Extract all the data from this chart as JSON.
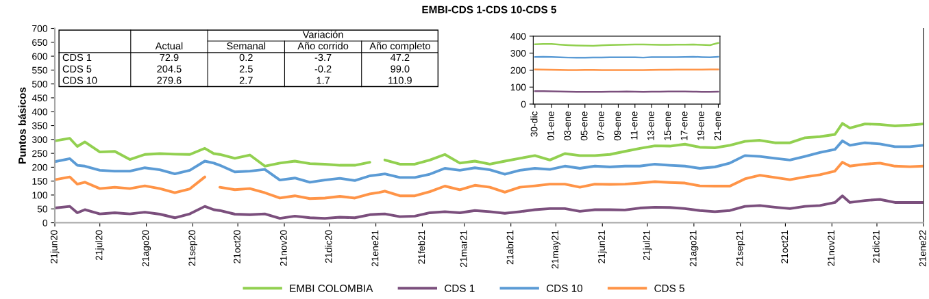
{
  "chart_data": [
    {
      "type": "line",
      "title": "EMBI-CDS 1-CDS 10-CDS 5",
      "ylabel": "Puntos básicos",
      "legend": "bottom",
      "x": [
        "2020-06-21",
        "2020-07-01",
        "2020-07-06",
        "2020-07-11",
        "2020-07-21",
        "2020-07-31",
        "2020-08-10",
        "2020-08-20",
        "2020-08-30",
        "2020-09-09",
        "2020-09-19",
        "2020-09-29",
        "2020-10-05",
        "2020-10-09",
        "2020-10-19",
        "2020-10-29",
        "2020-11-08",
        "2020-11-18",
        "2020-11-28",
        "2020-12-08",
        "2020-12-18",
        "2020-12-28",
        "2021-01-07",
        "2021-01-17",
        "2021-01-23",
        "2021-01-27",
        "2021-02-06",
        "2021-02-16",
        "2021-02-26",
        "2021-03-08",
        "2021-03-18",
        "2021-03-28",
        "2021-04-07",
        "2021-04-17",
        "2021-04-27",
        "2021-05-07",
        "2021-05-17",
        "2021-05-27",
        "2021-06-06",
        "2021-06-16",
        "2021-06-26",
        "2021-07-06",
        "2021-07-16",
        "2021-07-26",
        "2021-08-05",
        "2021-08-15",
        "2021-08-25",
        "2021-09-04",
        "2021-09-14",
        "2021-09-24",
        "2021-10-04",
        "2021-10-14",
        "2021-10-24",
        "2021-11-03",
        "2021-11-13",
        "2021-11-23",
        "2021-11-28",
        "2021-12-03",
        "2021-12-13",
        "2021-12-23",
        "2022-01-02",
        "2022-01-12",
        "2022-01-21"
      ],
      "series": [
        {
          "name": "EMBI COLOMBIA",
          "color": "#92d050",
          "values": [
            295,
            304,
            275,
            291,
            255,
            257,
            228,
            246,
            249,
            247,
            246,
            268,
            249,
            246,
            232,
            244,
            204,
            215,
            222,
            213,
            211,
            207,
            207,
            218,
            null,
            226,
            211,
            211,
            226,
            246,
            215,
            222,
            211,
            222,
            232,
            242,
            226,
            249,
            242,
            242,
            246,
            257,
            268,
            277,
            276,
            283,
            272,
            270,
            279,
            293,
            297,
            288,
            288,
            306,
            310,
            318,
            358,
            341,
            356,
            354,
            349,
            352,
            356
          ]
        },
        {
          "name": "CDS 1",
          "color": "#7b4f7d",
          "values": [
            53,
            59,
            36,
            47,
            32,
            36,
            32,
            38,
            31,
            18,
            32,
            59,
            47,
            44,
            31,
            29,
            32,
            16,
            24,
            18,
            16,
            20,
            18,
            29,
            31,
            32,
            22,
            24,
            36,
            40,
            36,
            44,
            40,
            34,
            40,
            47,
            51,
            51,
            41,
            47,
            47,
            46,
            53,
            56,
            55,
            51,
            44,
            40,
            44,
            59,
            62,
            56,
            51,
            59,
            62,
            73,
            97,
            73,
            80,
            84,
            73,
            73,
            73
          ]
        },
        {
          "name": "CDS 10",
          "color": "#5b9bd5",
          "values": [
            220,
            231,
            207,
            204,
            189,
            186,
            186,
            198,
            191,
            176,
            189,
            222,
            215,
            207,
            183,
            186,
            192,
            154,
            161,
            146,
            154,
            160,
            152,
            169,
            173,
            176,
            163,
            163,
            175,
            196,
            189,
            198,
            191,
            175,
            189,
            196,
            192,
            204,
            196,
            204,
            201,
            204,
            204,
            211,
            207,
            204,
            196,
            201,
            215,
            242,
            239,
            232,
            226,
            239,
            253,
            264,
            295,
            279,
            288,
            284,
            274,
            274,
            279
          ]
        },
        {
          "name": "CDS 5",
          "color": "#ff9447",
          "values": [
            155,
            165,
            139,
            146,
            123,
            128,
            123,
            133,
            123,
            108,
            122,
            165,
            null,
            128,
            119,
            123,
            108,
            89,
            97,
            87,
            89,
            95,
            89,
            104,
            109,
            114,
            97,
            97,
            112,
            132,
            119,
            135,
            128,
            110,
            128,
            133,
            139,
            139,
            128,
            139,
            138,
            139,
            143,
            148,
            145,
            143,
            133,
            132,
            132,
            158,
            171,
            163,
            155,
            165,
            173,
            186,
            218,
            204,
            211,
            215,
            204,
            202,
            204
          ]
        }
      ],
      "xlim": [
        "2020-06-21",
        "2022-01-21"
      ],
      "xticks": [
        {
          "value": "2020-06-21",
          "label": "21jun20"
        },
        {
          "value": "2020-07-21",
          "label": "21jul20"
        },
        {
          "value": "2020-08-21",
          "label": "21ago20"
        },
        {
          "value": "2020-09-21",
          "label": "21sep20"
        },
        {
          "value": "2020-10-21",
          "label": "21oct20"
        },
        {
          "value": "2020-11-21",
          "label": "21nov20"
        },
        {
          "value": "2020-12-21",
          "label": "21dic20"
        },
        {
          "value": "2021-01-21",
          "label": "21ene21"
        },
        {
          "value": "2021-02-21",
          "label": "21feb21"
        },
        {
          "value": "2021-03-21",
          "label": "21mar21"
        },
        {
          "value": "2021-04-21",
          "label": "21abr21"
        },
        {
          "value": "2021-05-21",
          "label": "21may21"
        },
        {
          "value": "2021-06-21",
          "label": "21jun21"
        },
        {
          "value": "2021-07-21",
          "label": "21jul21"
        },
        {
          "value": "2021-08-21",
          "label": "21ago21"
        },
        {
          "value": "2021-09-21",
          "label": "21sep21"
        },
        {
          "value": "2021-10-21",
          "label": "21oct21"
        },
        {
          "value": "2021-11-21",
          "label": "21nov21"
        },
        {
          "value": "2021-12-21",
          "label": "21dic21"
        },
        {
          "value": "2022-01-21",
          "label": "21ene22"
        }
      ],
      "ylim": [
        0,
        700
      ],
      "yticks": [
        0,
        50,
        100,
        150,
        200,
        250,
        300,
        350,
        400,
        450,
        500,
        550,
        600,
        650,
        700
      ]
    },
    {
      "type": "line",
      "categories": [
        "30-dic",
        null,
        "01-ene",
        null,
        "03-ene",
        null,
        "05-ene",
        null,
        "07-ene",
        null,
        "09-ene",
        null,
        "11-ene",
        null,
        "13-ene",
        null,
        "15-ene",
        null,
        "17-ene",
        null,
        "19-ene",
        null,
        "21-ene"
      ],
      "series": [
        {
          "color": "#92d050",
          "values": [
            352,
            354,
            354,
            350,
            347,
            345,
            344,
            343,
            346,
            348,
            349,
            350,
            351,
            351,
            350,
            349,
            349,
            350,
            350,
            351,
            349,
            347,
            360
          ]
        },
        {
          "color": "#7b4f7d",
          "values": [
            76,
            76,
            75,
            74,
            73,
            72,
            72,
            72,
            72,
            73,
            73,
            74,
            73,
            72,
            73,
            73,
            74,
            74,
            74,
            73,
            72,
            72,
            73
          ]
        },
        {
          "color": "#5b9bd5",
          "values": [
            278,
            279,
            278,
            276,
            274,
            273,
            273,
            274,
            275,
            276,
            276,
            276,
            276,
            274,
            277,
            277,
            277,
            277,
            278,
            279,
            277,
            276,
            279
          ]
        },
        {
          "color": "#ff9447",
          "values": [
            204,
            203,
            202,
            201,
            200,
            200,
            201,
            201,
            200,
            200,
            200,
            200,
            200,
            200,
            201,
            202,
            202,
            203,
            203,
            203,
            203,
            204,
            204
          ]
        }
      ],
      "ylim": [
        0,
        400
      ],
      "yticks": [
        0,
        100,
        200,
        300,
        400
      ]
    },
    {
      "type": "other",
      "annotations": [
        "Variación"
      ],
      "categories": [
        "Actual",
        "Semanal",
        "Año corrido",
        "Año completo"
      ],
      "y_categories": [
        "CDS 1",
        "CDS 5",
        "CDS 10"
      ],
      "cell_labels": [
        [
          "72.9",
          "0.2",
          "-3.7",
          "47.2"
        ],
        [
          "204.5",
          "2.5",
          "-0.2",
          "99.0"
        ],
        [
          "279.6",
          "2.7",
          "1.7",
          "110.9"
        ]
      ]
    }
  ]
}
